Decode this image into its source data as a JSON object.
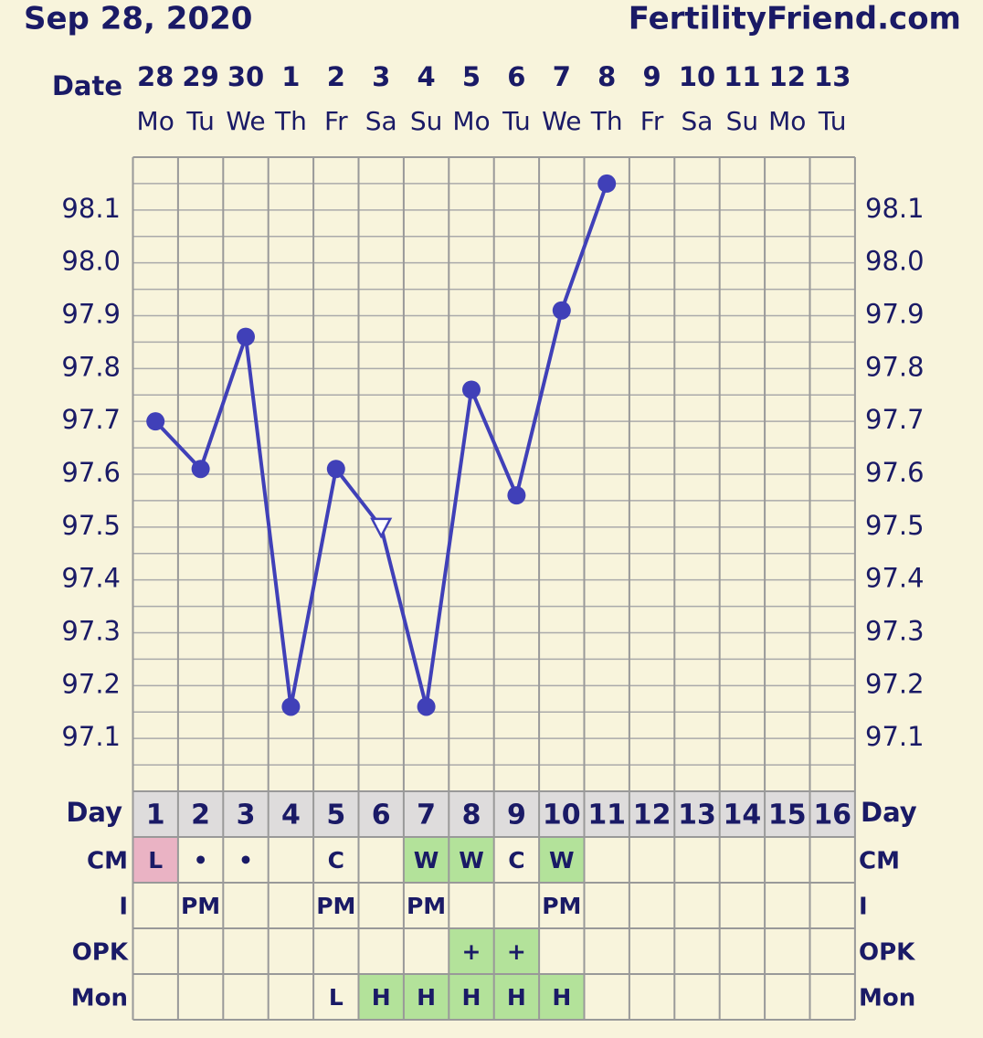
{
  "header": {
    "date": "Sep 28, 2020",
    "site": "FertilityFriend.com"
  },
  "chart_data": {
    "type": "line",
    "date_label": "Date",
    "dates": [
      28,
      29,
      30,
      1,
      2,
      3,
      4,
      5,
      6,
      7,
      8,
      9,
      10,
      11,
      12,
      13
    ],
    "weekdays": [
      "Mo",
      "Tu",
      "We",
      "Th",
      "Fr",
      "Sa",
      "Su",
      "Mo",
      "Tu",
      "We",
      "Th",
      "Fr",
      "Sa",
      "Su",
      "Mo",
      "Tu"
    ],
    "day_label": "Day",
    "categories": [
      1,
      2,
      3,
      4,
      5,
      6,
      7,
      8,
      9,
      10,
      11,
      12,
      13,
      14,
      15,
      16
    ],
    "values": [
      97.7,
      97.61,
      97.86,
      97.16,
      97.61,
      97.5,
      97.16,
      97.76,
      97.56,
      97.91,
      98.15,
      null,
      null,
      null,
      null,
      null
    ],
    "markers": [
      "circle",
      "circle",
      "circle",
      "circle",
      "circle",
      "triangle-open",
      "circle",
      "circle",
      "circle",
      "circle",
      "circle",
      null,
      null,
      null,
      null,
      null
    ],
    "color": "#4040b8",
    "ylim": [
      97.0,
      98.2
    ],
    "yticks": [
      97.1,
      97.2,
      97.3,
      97.4,
      97.5,
      97.6,
      97.7,
      97.8,
      97.9,
      {
        "value": 98.0,
        "label": "98.0"
      },
      98.1
    ],
    "grid": true
  },
  "table": {
    "rows": [
      {
        "label": "CM",
        "cells": [
          "L",
          "•",
          "•",
          null,
          "C",
          null,
          "W",
          "W",
          "C",
          "W",
          null,
          null,
          null,
          null,
          null,
          null
        ],
        "colors": [
          "#eab3c4",
          null,
          null,
          null,
          null,
          null,
          "#b3e29a",
          "#b3e29a",
          null,
          "#b3e29a",
          null,
          null,
          null,
          null,
          null,
          null
        ]
      },
      {
        "label": "I",
        "cells": [
          null,
          "PM",
          null,
          null,
          "PM",
          null,
          "PM",
          null,
          null,
          "PM",
          null,
          null,
          null,
          null,
          null,
          null
        ],
        "colors": [
          null,
          null,
          null,
          null,
          null,
          null,
          null,
          null,
          null,
          null,
          null,
          null,
          null,
          null,
          null,
          null
        ]
      },
      {
        "label": "OPK",
        "cells": [
          null,
          null,
          null,
          null,
          null,
          null,
          null,
          "+",
          "+",
          null,
          null,
          null,
          null,
          null,
          null,
          null
        ],
        "colors": [
          null,
          null,
          null,
          null,
          null,
          null,
          null,
          "#b3e29a",
          "#b3e29a",
          null,
          null,
          null,
          null,
          null,
          null,
          null
        ]
      },
      {
        "label": "Mon",
        "cells": [
          null,
          null,
          null,
          null,
          "L",
          "H",
          "H",
          "H",
          "H",
          "H",
          null,
          null,
          null,
          null,
          null,
          null
        ],
        "colors": [
          null,
          null,
          null,
          null,
          null,
          "#b3e29a",
          "#b3e29a",
          "#b3e29a",
          "#b3e29a",
          "#b3e29a",
          null,
          null,
          null,
          null,
          null,
          null
        ]
      }
    ]
  }
}
